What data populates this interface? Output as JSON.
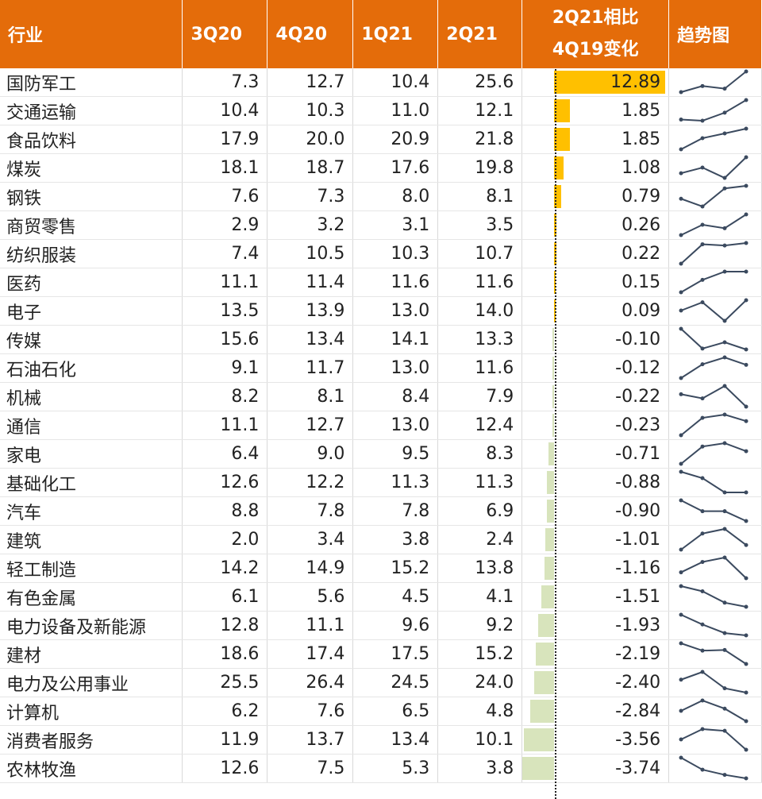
{
  "chart_data": {
    "type": "table",
    "columns": [
      "行业",
      "3Q20",
      "4Q20",
      "1Q21",
      "2Q21",
      "2Q21相比",
      "4Q19变化",
      "趋势图"
    ],
    "colors": {
      "header": "#E46C0A",
      "positive": "#FFC000",
      "negative": "#D8E4BC",
      "spark": "#3B4A5F"
    },
    "rows": [
      {
        "name": "国防军工",
        "values": [
          "7.3",
          "12.7",
          "10.4",
          "25.6"
        ],
        "change": "12.89"
      },
      {
        "name": "交通运输",
        "values": [
          "10.4",
          "10.3",
          "11.0",
          "12.1"
        ],
        "change": "1.85"
      },
      {
        "name": "食品饮料",
        "values": [
          "17.9",
          "20.0",
          "20.9",
          "21.8"
        ],
        "change": "1.85"
      },
      {
        "name": "煤炭",
        "values": [
          "18.1",
          "18.7",
          "17.6",
          "19.8"
        ],
        "change": "1.08"
      },
      {
        "name": "钢铁",
        "values": [
          "7.6",
          "7.3",
          "8.0",
          "8.1"
        ],
        "change": "0.79"
      },
      {
        "name": "商贸零售",
        "values": [
          "2.9",
          "3.2",
          "3.1",
          "3.5"
        ],
        "change": "0.26"
      },
      {
        "name": "纺织服装",
        "values": [
          "7.4",
          "10.5",
          "10.3",
          "10.7"
        ],
        "change": "0.22"
      },
      {
        "name": "医药",
        "values": [
          "11.1",
          "11.4",
          "11.6",
          "11.6"
        ],
        "change": "0.15"
      },
      {
        "name": "电子",
        "values": [
          "13.5",
          "13.9",
          "13.0",
          "14.0"
        ],
        "change": "0.09"
      },
      {
        "name": "传媒",
        "values": [
          "15.6",
          "13.4",
          "14.1",
          "13.3"
        ],
        "change": "-0.10"
      },
      {
        "name": "石油石化",
        "values": [
          "9.1",
          "11.7",
          "13.0",
          "11.6"
        ],
        "change": "-0.12"
      },
      {
        "name": "机械",
        "values": [
          "8.2",
          "8.1",
          "8.4",
          "7.9"
        ],
        "change": "-0.22"
      },
      {
        "name": "通信",
        "values": [
          "11.1",
          "12.7",
          "13.0",
          "12.4"
        ],
        "change": "-0.23"
      },
      {
        "name": "家电",
        "values": [
          "6.4",
          "9.0",
          "9.5",
          "8.3"
        ],
        "change": "-0.71"
      },
      {
        "name": "基础化工",
        "values": [
          "12.6",
          "12.2",
          "11.3",
          "11.3"
        ],
        "change": "-0.88"
      },
      {
        "name": "汽车",
        "values": [
          "8.8",
          "7.8",
          "7.8",
          "6.9"
        ],
        "change": "-0.90"
      },
      {
        "name": "建筑",
        "values": [
          "2.0",
          "3.4",
          "3.8",
          "2.4"
        ],
        "change": "-1.01"
      },
      {
        "name": "轻工制造",
        "values": [
          "14.2",
          "14.9",
          "15.2",
          "13.8"
        ],
        "change": "-1.16"
      },
      {
        "name": "有色金属",
        "values": [
          "6.1",
          "5.6",
          "4.5",
          "4.1"
        ],
        "change": "-1.51"
      },
      {
        "name": "电力设备及新能源",
        "values": [
          "12.8",
          "11.1",
          "9.6",
          "9.2"
        ],
        "change": "-1.93"
      },
      {
        "name": "建材",
        "values": [
          "18.6",
          "17.4",
          "17.5",
          "15.2"
        ],
        "change": "-2.19"
      },
      {
        "name": "电力及公用事业",
        "values": [
          "25.5",
          "26.4",
          "24.5",
          "24.0"
        ],
        "change": "-2.40"
      },
      {
        "name": "计算机",
        "values": [
          "6.2",
          "7.6",
          "6.5",
          "4.8"
        ],
        "change": "-2.84"
      },
      {
        "name": "消费者服务",
        "values": [
          "11.9",
          "13.7",
          "13.4",
          "10.1"
        ],
        "change": "-3.56"
      },
      {
        "name": "农林牧渔",
        "values": [
          "12.6",
          "7.5",
          "5.3",
          "3.8"
        ],
        "change": "-3.74"
      }
    ]
  }
}
